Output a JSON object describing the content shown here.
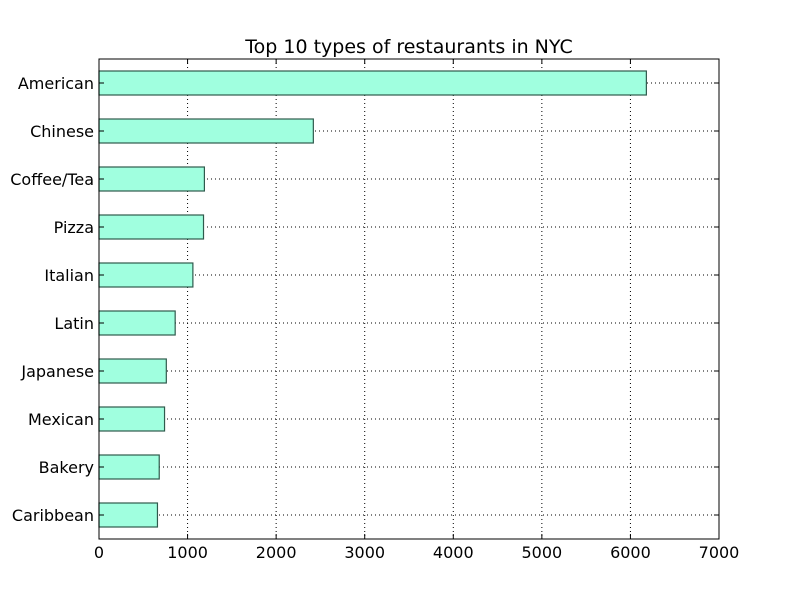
{
  "chart_data": {
    "type": "bar",
    "orientation": "horizontal",
    "title": "Top 10 types of restaurants in NYC",
    "categories": [
      "American",
      "Chinese",
      "Coffee/Tea",
      "Pizza",
      "Italian",
      "Latin",
      "Japanese",
      "Mexican",
      "Bakery",
      "Caribbean"
    ],
    "values": [
      6180,
      2420,
      1190,
      1180,
      1060,
      860,
      760,
      740,
      680,
      660
    ],
    "xlim": [
      0,
      7000
    ],
    "xticks": [
      "0",
      "1000",
      "2000",
      "3000",
      "4000",
      "5000",
      "6000",
      "7000"
    ],
    "grid": true,
    "bar_color": "#a0ffdf",
    "bar_edge_color": "#2f5a4c"
  }
}
